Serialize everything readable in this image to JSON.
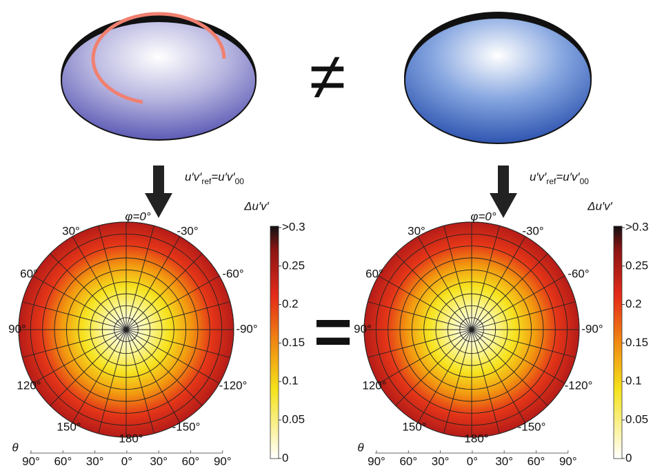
{
  "relation_top": "≠",
  "relation_bottom": "=",
  "panels": [
    {
      "formula": {
        "lhs": "u′v′",
        "lhs_sub": "ref",
        "rhs": "=u′v′",
        "rhs_sub": "00"
      },
      "polar_labels": [
        "φ=0°",
        "30°",
        "-30°",
        "60°",
        "-60°",
        "90°",
        "-90°",
        "120°",
        "-120°",
        "150°",
        "-150°",
        "180°"
      ],
      "theta_label": "θ",
      "theta_ticks": [
        "90°",
        "60°",
        "30°",
        "0°",
        "30°",
        "60°",
        "90°"
      ],
      "colorbar_title": "Δu′v′",
      "colorbar_ticks": [
        ">0.3",
        "0.25",
        "0.2",
        "0.15",
        "0.1",
        "0.05",
        "0"
      ]
    },
    {
      "formula": {
        "lhs": "u′v′",
        "lhs_sub": "ref",
        "rhs": "=u′v′",
        "rhs_sub": "00"
      },
      "polar_labels": [
        "φ=0°",
        "30°",
        "-30°",
        "60°",
        "-60°",
        "90°",
        "-90°",
        "120°",
        "-120°",
        "150°",
        "-150°",
        "180°"
      ],
      "theta_label": "θ",
      "theta_ticks": [
        "90°",
        "60°",
        "30°",
        "0°",
        "30°",
        "60°",
        "90°"
      ],
      "colorbar_title": "Δu′v′",
      "colorbar_ticks": [
        ">0.3",
        "0.25",
        "0.2",
        "0.15",
        "0.1",
        "0.05",
        "0"
      ]
    }
  ]
}
